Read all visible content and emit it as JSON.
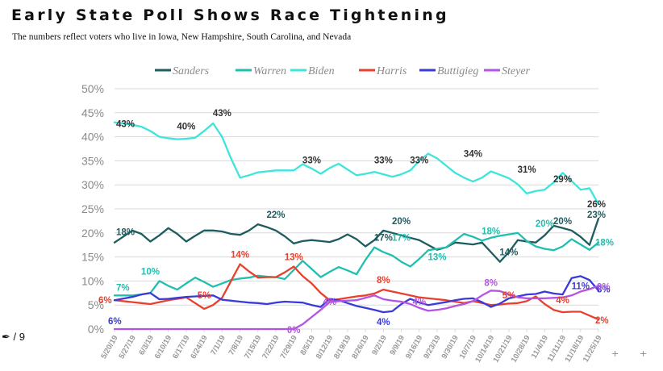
{
  "header": {
    "title": "Early State Poll Shows Race Tightening",
    "subtitle": "The numbers reflect voters who live in Iowa, New Hampshire, South Carolina, and Nevada"
  },
  "footer": {
    "page_counter": "/ 9",
    "icon": "edit-icon",
    "plus_marks": [
      "+",
      "+"
    ]
  },
  "chart_data": {
    "type": "line",
    "title": "Early State Poll Shows Race Tightening",
    "xlabel": "",
    "ylabel": "",
    "ylim": [
      0,
      50
    ],
    "yticks": [
      "0%",
      "5%",
      "10%",
      "15%",
      "20%",
      "25%",
      "30%",
      "35%",
      "40%",
      "45%",
      "50%"
    ],
    "grid": true,
    "legend_position": "top",
    "categories": [
      "5/20/19",
      "5/27/19",
      "6/3/19",
      "6/10/19",
      "6/17/19",
      "6/24/19",
      "7/1/19",
      "7/8/19",
      "7/15/19",
      "7/22/19",
      "7/29/19",
      "8/5/19",
      "8/12/19",
      "8/19/19",
      "8/26/19",
      "9/2/19",
      "9/9/19",
      "9/16/19",
      "9/23/19",
      "9/30/19",
      "10/7/19",
      "10/14/19",
      "10/21/19",
      "10/28/19",
      "11/4/19",
      "11/11/19",
      "11/18/19",
      "11/25/19"
    ],
    "x": [
      0,
      1,
      1.5,
      2,
      2.5,
      3,
      3.5,
      4,
      4.5,
      5,
      5.5,
      6,
      6.5,
      7,
      7.5,
      8,
      8.5,
      9,
      9.5,
      10,
      10.5,
      11,
      11.5,
      12,
      12.5,
      13,
      13.5,
      14,
      14.5,
      15,
      15.5,
      16,
      16.5,
      17,
      17.5,
      18,
      18.5,
      19,
      19.5,
      20,
      20.5,
      21,
      21.5,
      22,
      22.5,
      23,
      23.5,
      24,
      24.5,
      25,
      25.5,
      26,
      26.5,
      27
    ],
    "series": [
      {
        "name": "Sanders",
        "color": "#1d5c5f",
        "values": [
          18,
          20.5,
          19.8,
          18.2,
          19.5,
          21,
          19.8,
          18.2,
          19.4,
          20.5,
          20.5,
          20.3,
          19.8,
          19.6,
          20.5,
          21.8,
          21.2,
          20.5,
          19.3,
          17.8,
          18.3,
          18.5,
          18.3,
          18.1,
          18.7,
          19.7,
          18.7,
          17.2,
          18.5,
          20.5,
          20,
          19.5,
          19,
          18.5,
          17.5,
          16.5,
          17,
          18,
          17.8,
          17.6,
          18,
          16,
          14,
          16,
          18.5,
          18.2,
          18,
          19.5,
          21.5,
          21,
          20.5,
          19.2,
          17.5,
          23
        ]
      },
      {
        "name": "Warren",
        "color": "#1fbfb0",
        "values": [
          7,
          7,
          7.2,
          7.5,
          10,
          9,
          8.2,
          9.5,
          10.7,
          9.8,
          8.8,
          9.5,
          10.2,
          10.5,
          10.7,
          11.1,
          10.9,
          10.8,
          10.4,
          12.3,
          14.2,
          12.5,
          10.8,
          11.9,
          12.9,
          12.2,
          11.4,
          14.4,
          17,
          16,
          15.3,
          14,
          13,
          14.6,
          16.4,
          16.7,
          17,
          18.4,
          19.8,
          19.2,
          18.4,
          19,
          19.4,
          19.7,
          20,
          18.3,
          17.2,
          16.7,
          16.4,
          17.2,
          18.7,
          17.6,
          16.5,
          18
        ]
      },
      {
        "name": "Biden",
        "color": "#3de5db",
        "values": [
          43,
          42.5,
          42.1,
          41.2,
          40,
          39.7,
          39.5,
          39.6,
          39.8,
          41.2,
          42.8,
          40,
          35.5,
          31.5,
          32,
          32.6,
          32.8,
          33,
          33,
          33,
          34.3,
          33.4,
          32.3,
          33.5,
          34.4,
          33.2,
          32,
          32.3,
          32.7,
          32.2,
          31.7,
          32.2,
          33,
          35,
          36.5,
          35.5,
          34,
          32.5,
          31.5,
          30.7,
          31.5,
          32.8,
          32.1,
          31.4,
          30.1,
          28.2,
          28.7,
          29,
          30.5,
          32.5,
          30.8,
          29,
          29.3,
          26
        ]
      },
      {
        "name": "Harris",
        "color": "#e8402d",
        "values": [
          6,
          5.6,
          5.4,
          5.2,
          5.6,
          6,
          6.3,
          6.6,
          5.4,
          4.2,
          5,
          6.5,
          10,
          13.5,
          12,
          10.7,
          10.8,
          10.8,
          11.8,
          13,
          11,
          9.5,
          7.5,
          6,
          6.2,
          6.5,
          6.8,
          7,
          7.4,
          8.2,
          7.8,
          7.4,
          7,
          6.6,
          6.4,
          6.2,
          6,
          5.7,
          5.4,
          5.8,
          5.4,
          5,
          5.1,
          5.3,
          5.4,
          5.8,
          6.8,
          5.2,
          4,
          3.5,
          3.6,
          3.6,
          2.8,
          2
        ]
      },
      {
        "name": "Buttigieg",
        "color": "#3a3ad8",
        "values": [
          6,
          6.7,
          7.2,
          7.5,
          6.2,
          6.3,
          6.5,
          6.7,
          6.8,
          6.9,
          7,
          6.1,
          5.9,
          5.7,
          5.5,
          5.4,
          5.2,
          5.5,
          5.7,
          5.6,
          5.5,
          5,
          4.6,
          6.3,
          6,
          5.4,
          4.8,
          4.4,
          4,
          3.5,
          3.7,
          5.2,
          6.3,
          5.5,
          5,
          5.3,
          5.6,
          6,
          6.3,
          6.4,
          5.6,
          4.6,
          5.3,
          6.4,
          6.8,
          7.2,
          7.3,
          7.8,
          7.4,
          7.2,
          10.6,
          11,
          10.2,
          8
        ]
      },
      {
        "name": "Steyer",
        "color": "#b554e3",
        "values": [
          0,
          0,
          0,
          0,
          0,
          0,
          0,
          0,
          0,
          0,
          0,
          0,
          0,
          0,
          0,
          0,
          0,
          0,
          0,
          0,
          1,
          2.5,
          4,
          5.6,
          5.8,
          5.9,
          6,
          6.5,
          7,
          6.2,
          5.9,
          5.7,
          5.2,
          4.4,
          3.8,
          4,
          4.3,
          4.8,
          5.2,
          5.8,
          7,
          8,
          7.9,
          7.2,
          6.6,
          6.4,
          6.4,
          6.4,
          6.5,
          6.6,
          7,
          7.8,
          8.3,
          9
        ]
      }
    ],
    "annotations": [
      {
        "text": "43%",
        "series": "Biden",
        "x": 0,
        "y": 43
      },
      {
        "text": "40%",
        "series": "Biden",
        "x": 4,
        "y": 40
      },
      {
        "text": "43%",
        "series": "Biden",
        "x": 6,
        "y": 42.8
      },
      {
        "text": "33%",
        "series": "Biden",
        "x": 11,
        "y": 33
      },
      {
        "text": "33%",
        "series": "Biden",
        "x": 15,
        "y": 33
      },
      {
        "text": "33%",
        "series": "Biden",
        "x": 17,
        "y": 33
      },
      {
        "text": "34%",
        "series": "Biden",
        "x": 20,
        "y": 34.3
      },
      {
        "text": "31%",
        "series": "Biden",
        "x": 23,
        "y": 31
      },
      {
        "text": "29%",
        "series": "Biden",
        "x": 25,
        "y": 29
      },
      {
        "text": "26%",
        "series": "Biden",
        "x": 27,
        "y": 26
      },
      {
        "text": "18%",
        "series": "Sanders",
        "x": 0,
        "y": 18.2
      },
      {
        "text": "22%",
        "series": "Sanders",
        "x": 9,
        "y": 21.8
      },
      {
        "text": "17%",
        "series": "Sanders",
        "x": 15,
        "y": 17
      },
      {
        "text": "20%",
        "series": "Sanders",
        "x": 16,
        "y": 20.5
      },
      {
        "text": "14%",
        "series": "Sanders",
        "x": 22,
        "y": 14
      },
      {
        "text": "20%",
        "series": "Sanders",
        "x": 25,
        "y": 20.5
      },
      {
        "text": "23%",
        "series": "Sanders",
        "x": 27,
        "y": 23
      },
      {
        "text": "7%",
        "series": "Warren",
        "x": 0,
        "y": 7
      },
      {
        "text": "10%",
        "series": "Warren",
        "x": 2,
        "y": 10
      },
      {
        "text": "17%",
        "series": "Warren",
        "x": 16,
        "y": 17
      },
      {
        "text": "13%",
        "series": "Warren",
        "x": 18,
        "y": 13
      },
      {
        "text": "18%",
        "series": "Warren",
        "x": 21,
        "y": 18.4
      },
      {
        "text": "20%",
        "series": "Warren",
        "x": 24,
        "y": 20
      },
      {
        "text": "18%",
        "series": "Warren",
        "x": 27,
        "y": 18
      },
      {
        "text": "6%",
        "series": "Harris",
        "x": 0,
        "y": 6
      },
      {
        "text": "5%",
        "series": "Harris",
        "x": 5,
        "y": 5
      },
      {
        "text": "14%",
        "series": "Harris",
        "x": 7,
        "y": 13.5
      },
      {
        "text": "13%",
        "series": "Harris",
        "x": 10,
        "y": 13
      },
      {
        "text": "8%",
        "series": "Harris",
        "x": 15,
        "y": 8.2
      },
      {
        "text": "5%",
        "series": "Harris",
        "x": 22,
        "y": 5
      },
      {
        "text": "4%",
        "series": "Harris",
        "x": 25,
        "y": 4
      },
      {
        "text": "2%",
        "series": "Harris",
        "x": 27,
        "y": 2
      },
      {
        "text": "6%",
        "series": "Buttigieg",
        "x": 0,
        "y": 6
      },
      {
        "text": "4%",
        "series": "Buttigieg",
        "x": 15,
        "y": 3.5
      },
      {
        "text": "11%",
        "series": "Buttigieg",
        "x": 26,
        "y": 11
      },
      {
        "text": "8%",
        "series": "Buttigieg",
        "x": 27,
        "y": 8
      },
      {
        "text": "0%",
        "series": "Steyer",
        "x": 10,
        "y": 0
      },
      {
        "text": "4%",
        "series": "Steyer",
        "x": 12,
        "y": 4
      },
      {
        "text": "4%",
        "series": "Steyer",
        "x": 17,
        "y": 4
      },
      {
        "text": "8%",
        "series": "Steyer",
        "x": 21,
        "y": 8
      },
      {
        "text": "9%",
        "series": "Steyer",
        "x": 27,
        "y": 9
      }
    ]
  }
}
